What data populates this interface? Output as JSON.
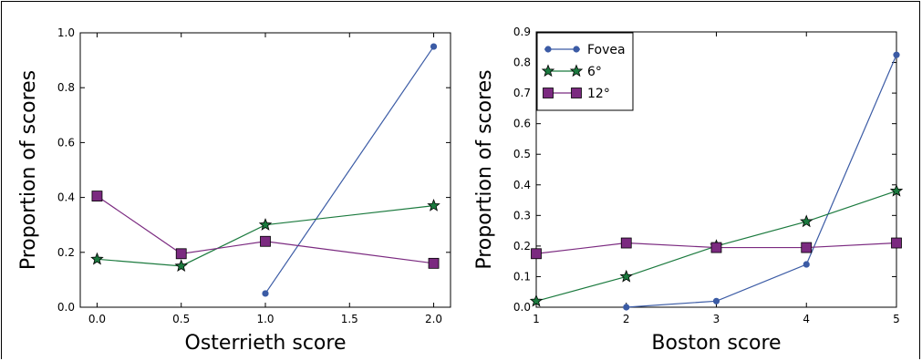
{
  "chart_data": [
    {
      "type": "line",
      "xlabel": "Osterrieth score",
      "ylabel": "Proportion of scores",
      "xlim": [
        -0.1,
        2.1
      ],
      "ylim": [
        0.0,
        1.0
      ],
      "xticks": [
        "0.0",
        "0.5",
        "1.0",
        "1.5",
        "2.0"
      ],
      "yticks": [
        "0.0",
        "0.2",
        "0.4",
        "0.6",
        "0.8",
        "1.0"
      ],
      "grid": false,
      "series": [
        {
          "key": "fovea",
          "color": "#3b5ba5",
          "marker": "circle",
          "x": [
            1.0,
            2.0
          ],
          "y": [
            0.05,
            0.95
          ]
        },
        {
          "key": "six",
          "color": "#1b7a3e",
          "marker": "star",
          "x": [
            0.0,
            0.5,
            1.0,
            2.0
          ],
          "y": [
            0.175,
            0.15,
            0.3,
            0.37
          ]
        },
        {
          "key": "twelve",
          "color": "#7b2a80",
          "marker": "square",
          "x": [
            0.0,
            0.5,
            1.0,
            2.0
          ],
          "y": [
            0.405,
            0.195,
            0.24,
            0.16
          ]
        }
      ]
    },
    {
      "type": "line",
      "xlabel": "Boston score",
      "ylabel": "Proportion of scores",
      "xlim": [
        1,
        5
      ],
      "ylim": [
        0.0,
        0.9
      ],
      "xticks": [
        "1",
        "2",
        "3",
        "4",
        "5"
      ],
      "yticks": [
        "0.0",
        "0.1",
        "0.2",
        "0.3",
        "0.4",
        "0.5",
        "0.6",
        "0.7",
        "0.8",
        "0.9"
      ],
      "grid": false,
      "legend": "top-left",
      "series": [
        {
          "key": "fovea",
          "name": "Fovea",
          "color": "#3b5ba5",
          "marker": "circle",
          "x": [
            2,
            3,
            4,
            5
          ],
          "y": [
            0.0,
            0.02,
            0.14,
            0.825
          ]
        },
        {
          "key": "six",
          "name": "6°",
          "color": "#1b7a3e",
          "marker": "star",
          "x": [
            1,
            2,
            3,
            4,
            5
          ],
          "y": [
            0.02,
            0.1,
            0.2,
            0.28,
            0.38
          ]
        },
        {
          "key": "twelve",
          "name": "12°",
          "color": "#7b2a80",
          "marker": "square",
          "x": [
            1,
            2,
            3,
            4,
            5
          ],
          "y": [
            0.175,
            0.21,
            0.195,
            0.195,
            0.21
          ]
        }
      ]
    }
  ]
}
